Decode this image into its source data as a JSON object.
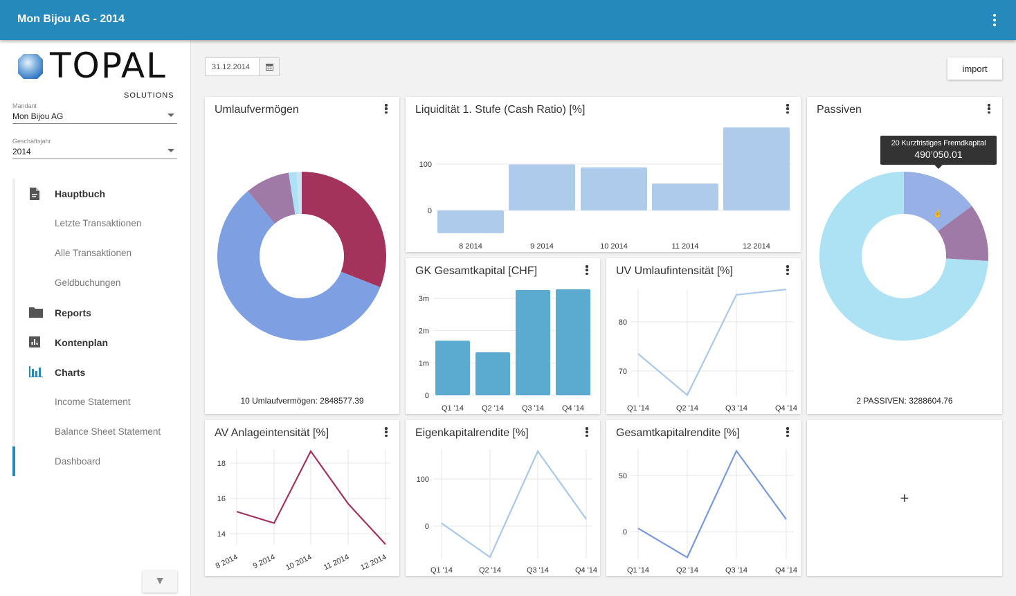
{
  "app": {
    "title": "Mon Bijou AG - 2014"
  },
  "logo": {
    "text": "TOPAL",
    "sub": "SOLUTIONS"
  },
  "sidebar": {
    "mandant": {
      "label": "Mandant",
      "value": "Mon Bijou AG"
    },
    "jahr": {
      "label": "Geschäftsjahr",
      "value": "2014"
    },
    "items": [
      {
        "label": "Hauptbuch",
        "type": "main",
        "icon": "document-icon"
      },
      {
        "label": "Letzte Transaktionen",
        "type": "sub"
      },
      {
        "label": "Alle Transaktionen",
        "type": "sub"
      },
      {
        "label": "Geldbuchungen",
        "type": "sub"
      },
      {
        "label": "Reports",
        "type": "main",
        "icon": "folder-icon"
      },
      {
        "label": "Kontenplan",
        "type": "main",
        "icon": "chart-box-icon"
      },
      {
        "label": "Charts",
        "type": "main",
        "icon": "bar-chart-icon"
      },
      {
        "label": "Income Statement",
        "type": "sub"
      },
      {
        "label": "Balance Sheet Statement",
        "type": "sub"
      },
      {
        "label": "Dashboard",
        "type": "sub",
        "active": true
      }
    ]
  },
  "toolbar": {
    "date": "31.12.2014",
    "import_label": "import"
  },
  "colors": {
    "header": "#2689bb",
    "crimson": "#a3335a",
    "blue": "#7f9fe3",
    "purple": "#9f7aa6",
    "cyan": "#ade1f4",
    "bar_light": "#afcbec",
    "bar_teal": "#5aabcf"
  },
  "chart_data": [
    {
      "id": "umlauf",
      "type": "pie",
      "title": "Umlaufvermögen",
      "footer": "10 Umlaufvermögen: 2848577.39",
      "values": [
        31,
        58,
        8.5,
        1.5,
        1
      ],
      "colors": [
        "#a3335a",
        "#7f9fe3",
        "#9f7aa6",
        "#ade1f4",
        "#c8e4f5"
      ]
    },
    {
      "id": "liq",
      "type": "bar",
      "title": "Liquidität 1. Stufe (Cash Ratio) [%]",
      "categories": [
        "8 2014",
        "9 2014",
        "10 2014",
        "11 2014",
        "12 2014"
      ],
      "values": [
        -49,
        99,
        93,
        58,
        179
      ],
      "yticks": [
        "0",
        "100"
      ],
      "ytickvals": [
        0,
        100
      ],
      "color": "#afcbec"
    },
    {
      "id": "passiven",
      "type": "pie",
      "title": "Passiven",
      "footer": "2 PASSIVEN: 3288604.76",
      "values": [
        490050.01,
        362000,
        2436554.75
      ],
      "colors": [
        "#97b1e6",
        "#9f7aa6",
        "#ade1f4"
      ],
      "tooltip": {
        "label": "20 Kurzfristiges Fremdkapital",
        "value": "490’050.01"
      }
    },
    {
      "id": "gk",
      "type": "bar",
      "title": "GK Gesamtkapital [CHF]",
      "categories": [
        "Q1 '14",
        "Q2 '14",
        "Q3 '14",
        "Q4 '14"
      ],
      "values": [
        1690000,
        1330000,
        3260000,
        3280000
      ],
      "yticks": [
        "0",
        "1m",
        "2m",
        "3m"
      ],
      "ytickvals": [
        0,
        1000000,
        2000000,
        3000000
      ],
      "color": "#5aabcf"
    },
    {
      "id": "uv",
      "type": "line",
      "title": "UV Umlaufintensität [%]",
      "categories": [
        "Q1 '14",
        "Q2 '14",
        "Q3 '14",
        "Q4 '14"
      ],
      "values": [
        73.5,
        65.1,
        85.5,
        86.6
      ],
      "yticks": [
        "70",
        "80"
      ],
      "ytickvals": [
        70,
        80
      ],
      "color": "#a9c8ec"
    },
    {
      "id": "av",
      "type": "line",
      "title": "AV Anlageintensität [%]",
      "categories": [
        "8 2014",
        "9 2014",
        "10 2014",
        "11 2014",
        "12 2014"
      ],
      "values": [
        15.25,
        14.6,
        18.67,
        15.7,
        13.4
      ],
      "yticks": [
        "14",
        "16",
        "18"
      ],
      "ytickvals": [
        14,
        16,
        18
      ],
      "color": "#a3335a"
    },
    {
      "id": "ek",
      "type": "line",
      "title": "Eigenkapitalrendite [%]",
      "categories": [
        "Q1 '14",
        "Q2 '14",
        "Q3 '14",
        "Q4 '14"
      ],
      "values": [
        6,
        -66,
        159,
        15
      ],
      "yticks": [
        "0",
        "100"
      ],
      "ytickvals": [
        0,
        100
      ],
      "color": "#a9c8ec"
    },
    {
      "id": "gkr",
      "type": "line",
      "title": "Gesamtkapitalrendite [%]",
      "categories": [
        "Q1 '14",
        "Q2 '14",
        "Q3 '14",
        "Q4 '14"
      ],
      "values": [
        3,
        -23,
        72,
        11
      ],
      "yticks": [
        "0",
        "50"
      ],
      "ytickvals": [
        0,
        50
      ],
      "color": "#7799dd"
    }
  ],
  "add_widget": {
    "label": "+"
  }
}
